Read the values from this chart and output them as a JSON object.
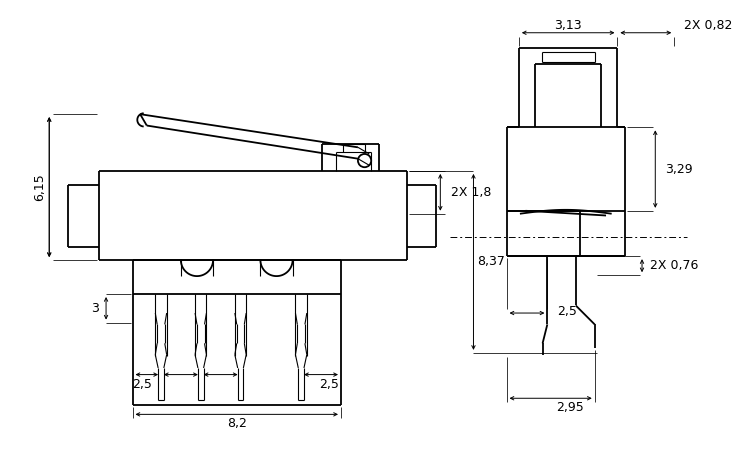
{
  "bg_color": "#ffffff",
  "line_color": "#000000",
  "font_size": 9,
  "lw_main": 1.3,
  "lw_thin": 0.8,
  "lw_dim": 0.7
}
